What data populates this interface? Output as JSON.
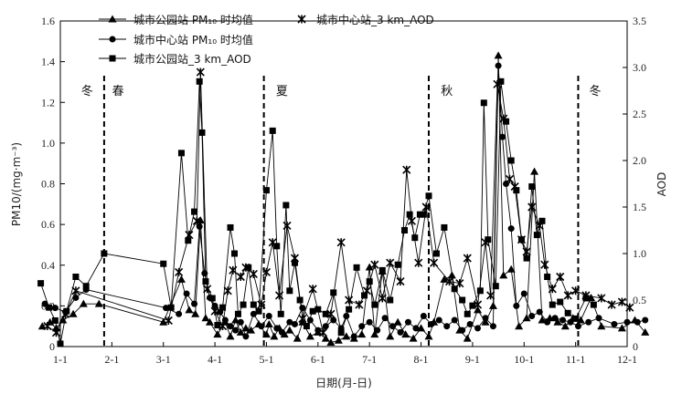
{
  "chart_data": {
    "type": "line",
    "ylabel_left": "PM10/(mg·m⁻³)",
    "ylabel_right": "AOD",
    "xlabel": "日期(月-日)",
    "ylim_left": [
      0,
      1.6
    ],
    "ylim_right": [
      0,
      3.5
    ],
    "left_ticks": [
      "0",
      "0.2",
      "0.4",
      "0.6",
      "0.8",
      "1.0",
      "1.2",
      "1.4",
      "1.6"
    ],
    "right_ticks": [
      "0",
      "0.5",
      "1.0",
      "1.5",
      "2.0",
      "2.5",
      "3.0",
      "3.5"
    ],
    "x_ticks": [
      "1-1",
      "2-1",
      "3-1",
      "4-1",
      "5-1",
      "6-1",
      "7-1",
      "8-1",
      "9-1",
      "10-1",
      "11-1",
      "12-1"
    ],
    "seasons": [
      {
        "label": "冬",
        "x": 1.52
      },
      {
        "label": "春",
        "x": 2.12
      },
      {
        "label": "夏",
        "x": 5.3
      },
      {
        "label": "秋",
        "x": 8.5
      },
      {
        "label": "冬",
        "x": 11.38
      }
    ],
    "season_dividers": [
      1.85,
      4.95,
      8.15,
      11.05
    ],
    "legend": [
      {
        "label": "城市公园站 PM₁₀ 时均值",
        "marker": "triangle"
      },
      {
        "label": "城市中心站 PM₁₀ 时均值",
        "marker": "circle"
      },
      {
        "label": "城市公园站_3 km_AOD",
        "marker": "square"
      },
      {
        "label": "城市中心站_3 km_AOD",
        "marker": "star"
      }
    ],
    "series": [
      {
        "name": "城市公园站 PM₁₀ 时均值",
        "axis": "left",
        "marker": "triangle",
        "points": [
          [
            0.65,
            0.1
          ],
          [
            0.8,
            0.12
          ],
          [
            0.92,
            0.09
          ],
          [
            1.05,
            0.13
          ],
          [
            1.25,
            0.16
          ],
          [
            1.45,
            0.21
          ],
          [
            1.75,
            0.21
          ],
          [
            3.0,
            0.12
          ],
          [
            3.35,
            0.33
          ],
          [
            3.5,
            0.18
          ],
          [
            3.62,
            0.16
          ],
          [
            3.72,
            0.62
          ],
          [
            3.82,
            0.14
          ],
          [
            3.9,
            0.12
          ],
          [
            4.05,
            0.06
          ],
          [
            4.2,
            0.12
          ],
          [
            4.3,
            0.05
          ],
          [
            4.4,
            0.13
          ],
          [
            4.5,
            0.07
          ],
          [
            4.6,
            0.09
          ],
          [
            4.7,
            0.08
          ],
          [
            4.85,
            0.11
          ],
          [
            5.0,
            0.06
          ],
          [
            5.05,
            0.11
          ],
          [
            5.15,
            0.05
          ],
          [
            5.25,
            0.09
          ],
          [
            5.35,
            0.06
          ],
          [
            5.45,
            0.08
          ],
          [
            5.6,
            0.04
          ],
          [
            5.7,
            0.12
          ],
          [
            5.85,
            0.05
          ],
          [
            6.0,
            0.07
          ],
          [
            6.15,
            0.04
          ],
          [
            6.25,
            0.02
          ],
          [
            6.4,
            0.03
          ],
          [
            6.55,
            0.05
          ],
          [
            6.7,
            0.04
          ],
          [
            6.85,
            0.06
          ],
          [
            7.0,
            0.39
          ],
          [
            7.1,
            0.06
          ],
          [
            7.25,
            0.37
          ],
          [
            7.4,
            0.05
          ],
          [
            7.55,
            0.12
          ],
          [
            7.7,
            0.06
          ],
          [
            7.85,
            0.04
          ],
          [
            8.0,
            0.09
          ],
          [
            8.15,
            0.05
          ],
          [
            8.25,
            0.12
          ],
          [
            8.45,
            0.33
          ],
          [
            8.6,
            0.35
          ],
          [
            8.75,
            0.08
          ],
          [
            8.9,
            0.04
          ],
          [
            9.1,
            0.18
          ],
          [
            9.25,
            0.12
          ],
          [
            9.4,
            0.2
          ],
          [
            9.5,
            1.43
          ],
          [
            9.6,
            0.35
          ],
          [
            9.75,
            0.38
          ],
          [
            9.9,
            0.1
          ],
          [
            10.05,
            0.14
          ],
          [
            10.2,
            0.86
          ],
          [
            10.35,
            0.13
          ],
          [
            10.5,
            0.14
          ],
          [
            10.65,
            0.12
          ],
          [
            10.8,
            0.1
          ],
          [
            10.95,
            0.14
          ],
          [
            11.1,
            0.13
          ],
          [
            11.3,
            0.24
          ],
          [
            11.5,
            0.1
          ],
          [
            11.9,
            0.09
          ],
          [
            12.15,
            0.13
          ],
          [
            12.35,
            0.07
          ]
        ]
      },
      {
        "name": "城市中心站 PM₁₀ 时均值",
        "axis": "left",
        "marker": "circle",
        "points": [
          [
            0.7,
            0.21
          ],
          [
            0.9,
            0.19
          ],
          [
            1.1,
            0.17
          ],
          [
            1.3,
            0.24
          ],
          [
            1.5,
            0.28
          ],
          [
            3.05,
            0.19
          ],
          [
            3.3,
            0.16
          ],
          [
            3.45,
            0.26
          ],
          [
            3.6,
            0.21
          ],
          [
            3.7,
            0.59
          ],
          [
            3.8,
            0.36
          ],
          [
            3.9,
            0.24
          ],
          [
            4.0,
            0.2
          ],
          [
            4.1,
            0.17
          ],
          [
            4.2,
            0.13
          ],
          [
            4.3,
            0.1
          ],
          [
            4.4,
            0.08
          ],
          [
            4.5,
            0.12
          ],
          [
            4.6,
            0.05
          ],
          [
            4.75,
            0.16
          ],
          [
            4.9,
            0.1
          ],
          [
            5.05,
            0.15
          ],
          [
            5.2,
            0.09
          ],
          [
            5.3,
            0.07
          ],
          [
            5.45,
            0.12
          ],
          [
            5.55,
            0.11
          ],
          [
            5.7,
            0.19
          ],
          [
            5.85,
            0.13
          ],
          [
            6.0,
            0.08
          ],
          [
            6.15,
            0.1
          ],
          [
            6.3,
            0.13
          ],
          [
            6.45,
            0.09
          ],
          [
            6.55,
            0.15
          ],
          [
            6.7,
            0.05
          ],
          [
            6.85,
            0.1
          ],
          [
            7.0,
            0.12
          ],
          [
            7.15,
            0.08
          ],
          [
            7.3,
            0.14
          ],
          [
            7.45,
            0.1
          ],
          [
            7.6,
            0.07
          ],
          [
            7.75,
            0.12
          ],
          [
            7.9,
            0.09
          ],
          [
            8.05,
            0.15
          ],
          [
            8.2,
            0.11
          ],
          [
            8.35,
            0.13
          ],
          [
            8.5,
            0.1
          ],
          [
            8.65,
            0.13
          ],
          [
            8.8,
            0.08
          ],
          [
            8.95,
            0.11
          ],
          [
            9.1,
            0.09
          ],
          [
            9.25,
            0.14
          ],
          [
            9.4,
            0.1
          ],
          [
            9.5,
            1.38
          ],
          [
            9.58,
            1.03
          ],
          [
            9.65,
            0.8
          ],
          [
            9.75,
            0.58
          ],
          [
            9.85,
            0.2
          ],
          [
            10.0,
            0.26
          ],
          [
            10.15,
            0.15
          ],
          [
            10.3,
            0.17
          ],
          [
            10.45,
            0.12
          ],
          [
            10.6,
            0.14
          ],
          [
            10.75,
            0.13
          ],
          [
            10.9,
            0.12
          ],
          [
            11.05,
            0.1
          ],
          [
            11.25,
            0.12
          ],
          [
            11.45,
            0.14
          ],
          [
            11.75,
            0.11
          ],
          [
            12.0,
            0.12
          ],
          [
            12.2,
            0.12
          ],
          [
            12.35,
            0.13
          ]
        ]
      },
      {
        "name": "城市公园站_3 km_AOD",
        "axis": "right",
        "marker": "square",
        "points": [
          [
            0.62,
            0.68
          ],
          [
            0.78,
            0.42
          ],
          [
            0.9,
            0.28
          ],
          [
            1.0,
            0.03
          ],
          [
            1.12,
            0.38
          ],
          [
            1.3,
            0.75
          ],
          [
            1.5,
            0.65
          ],
          [
            1.85,
            1.0
          ],
          [
            3.0,
            0.89
          ],
          [
            3.15,
            0.42
          ],
          [
            3.35,
            2.08
          ],
          [
            3.48,
            1.14
          ],
          [
            3.6,
            1.45
          ],
          [
            3.7,
            2.85
          ],
          [
            3.75,
            2.3
          ],
          [
            3.82,
            0.7
          ],
          [
            3.95,
            0.52
          ],
          [
            4.05,
            0.23
          ],
          [
            4.15,
            0.42
          ],
          [
            4.3,
            1.28
          ],
          [
            4.38,
            1.0
          ],
          [
            4.45,
            0.35
          ],
          [
            4.55,
            0.45
          ],
          [
            4.65,
            0.85
          ],
          [
            4.75,
            0.45
          ],
          [
            4.85,
            0.38
          ],
          [
            5.0,
            1.68
          ],
          [
            5.12,
            2.32
          ],
          [
            5.2,
            1.08
          ],
          [
            5.28,
            0.35
          ],
          [
            5.38,
            1.52
          ],
          [
            5.45,
            0.6
          ],
          [
            5.55,
            0.9
          ],
          [
            5.65,
            0.5
          ],
          [
            5.78,
            0.22
          ],
          [
            5.9,
            0.38
          ],
          [
            6.0,
            0.4
          ],
          [
            6.15,
            0.35
          ],
          [
            6.3,
            0.58
          ],
          [
            6.45,
            0.15
          ],
          [
            6.6,
            0.4
          ],
          [
            6.75,
            0.85
          ],
          [
            6.9,
            0.55
          ],
          [
            7.0,
            0.7
          ],
          [
            7.1,
            0.45
          ],
          [
            7.25,
            0.82
          ],
          [
            7.4,
            0.5
          ],
          [
            7.55,
            0.88
          ],
          [
            7.68,
            1.25
          ],
          [
            7.78,
            1.42
          ],
          [
            7.88,
            1.17
          ],
          [
            7.98,
            1.42
          ],
          [
            8.05,
            1.42
          ],
          [
            8.15,
            1.62
          ],
          [
            8.3,
            1.0
          ],
          [
            8.45,
            1.28
          ],
          [
            8.65,
            0.62
          ],
          [
            8.8,
            0.5
          ],
          [
            8.9,
            0.35
          ],
          [
            9.0,
            0.44
          ],
          [
            9.15,
            0.6
          ],
          [
            9.22,
            2.62
          ],
          [
            9.3,
            1.15
          ],
          [
            9.45,
            0.65
          ],
          [
            9.55,
            2.85
          ],
          [
            9.65,
            2.42
          ],
          [
            9.75,
            2.0
          ],
          [
            9.85,
            1.68
          ],
          [
            9.95,
            1.15
          ],
          [
            10.05,
            0.95
          ],
          [
            10.15,
            1.72
          ],
          [
            10.25,
            1.2
          ],
          [
            10.35,
            1.35
          ],
          [
            10.45,
            0.75
          ],
          [
            10.55,
            0.45
          ],
          [
            10.7,
            0.48
          ],
          [
            10.85,
            0.36
          ],
          [
            11.0,
            0.3
          ],
          [
            11.2,
            0.52
          ],
          [
            11.35,
            0.45
          ]
        ]
      },
      {
        "name": "城市中心站_3 km_AOD",
        "axis": "right",
        "marker": "star",
        "points": [
          [
            0.75,
            0.22
          ],
          [
            0.92,
            0.15
          ],
          [
            1.1,
            0.35
          ],
          [
            1.3,
            0.6
          ],
          [
            3.1,
            0.28
          ],
          [
            3.3,
            0.8
          ],
          [
            3.5,
            1.2
          ],
          [
            3.65,
            1.35
          ],
          [
            3.72,
            2.95
          ],
          [
            3.85,
            0.62
          ],
          [
            4.0,
            0.38
          ],
          [
            4.15,
            0.22
          ],
          [
            4.25,
            0.6
          ],
          [
            4.35,
            0.82
          ],
          [
            4.5,
            0.75
          ],
          [
            4.6,
            0.85
          ],
          [
            4.75,
            0.78
          ],
          [
            4.9,
            0.45
          ],
          [
            5.0,
            0.8
          ],
          [
            5.12,
            1.12
          ],
          [
            5.25,
            0.55
          ],
          [
            5.4,
            1.3
          ],
          [
            5.55,
            0.95
          ],
          [
            5.7,
            0.3
          ],
          [
            5.9,
            0.62
          ],
          [
            6.1,
            0.15
          ],
          [
            6.25,
            0.35
          ],
          [
            6.45,
            1.12
          ],
          [
            6.6,
            0.5
          ],
          [
            6.8,
            0.45
          ],
          [
            6.95,
            0.6
          ],
          [
            7.1,
            0.88
          ],
          [
            7.25,
            0.52
          ],
          [
            7.4,
            0.9
          ],
          [
            7.6,
            0.7
          ],
          [
            7.72,
            1.9
          ],
          [
            7.82,
            1.35
          ],
          [
            7.95,
            0.9
          ],
          [
            8.1,
            1.5
          ],
          [
            8.25,
            0.9
          ],
          [
            8.55,
            0.7
          ],
          [
            8.75,
            0.68
          ],
          [
            8.9,
            0.95
          ],
          [
            9.1,
            0.45
          ],
          [
            9.25,
            1.12
          ],
          [
            9.35,
            0.55
          ],
          [
            9.48,
            2.82
          ],
          [
            9.6,
            2.45
          ],
          [
            9.72,
            1.8
          ],
          [
            9.82,
            1.72
          ],
          [
            9.95,
            1.15
          ],
          [
            10.05,
            1.02
          ],
          [
            10.15,
            1.5
          ],
          [
            10.3,
            1.3
          ],
          [
            10.4,
            0.88
          ],
          [
            10.55,
            0.62
          ],
          [
            10.7,
            0.75
          ],
          [
            10.85,
            0.55
          ],
          [
            11.0,
            0.6
          ],
          [
            11.2,
            0.55
          ],
          [
            11.5,
            0.52
          ],
          [
            11.7,
            0.45
          ],
          [
            11.9,
            0.48
          ],
          [
            12.05,
            0.42
          ]
        ]
      }
    ]
  }
}
